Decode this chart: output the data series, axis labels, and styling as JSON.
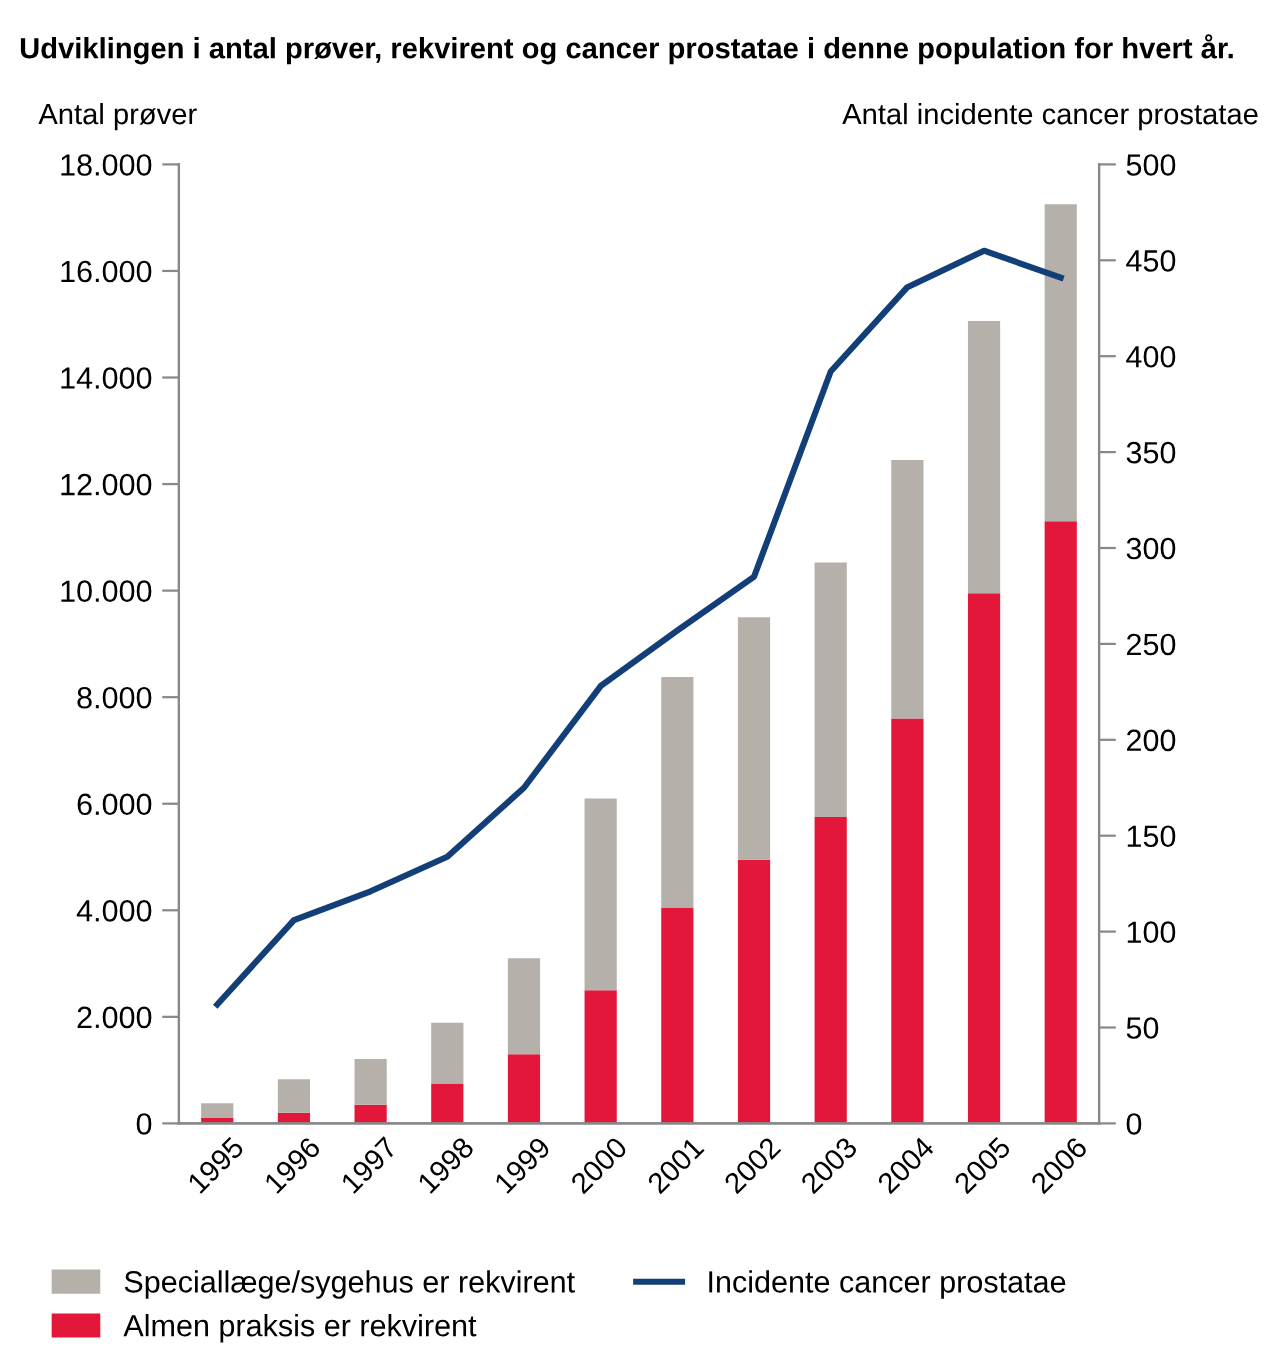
{
  "chart_data": {
    "type": "bar",
    "stacked": true,
    "title": "Udviklingen i antal prøver, rekvirent og cancer prostatae i denne population for hvert år.",
    "ylabel": "Antal prøver",
    "y2label": "Antal incidente cancer prostatae",
    "categories": [
      "1995",
      "1996",
      "1997",
      "1998",
      "1999",
      "2000",
      "2001",
      "2002",
      "2003",
      "2004",
      "2005",
      "2006"
    ],
    "series": [
      {
        "name": "Almen praksis er rekvirent",
        "color": "#e3173a",
        "values": [
          100,
          200,
          350,
          750,
          1300,
          2500,
          4050,
          4950,
          5750,
          7600,
          9950,
          11300
        ]
      },
      {
        "name": "Speciallæge/sygehus er rekvirent",
        "color": "#b6b0ab",
        "values": [
          280,
          630,
          860,
          1140,
          1800,
          3600,
          4330,
          4550,
          4780,
          4850,
          5110,
          5950
        ]
      },
      {
        "name": "Incidente cancer prostatae",
        "color": "#123f78",
        "type": "line",
        "axis": "y2",
        "values": [
          62,
          106,
          121,
          139,
          175,
          228,
          257,
          285,
          392,
          436,
          455,
          441
        ]
      }
    ],
    "ylim": [
      0,
      18000
    ],
    "yticks": [
      0,
      {
        "value": 2000,
        "label": "2.000"
      },
      {
        "value": 4000,
        "label": "4.000"
      },
      {
        "value": 6000,
        "label": "6.000"
      },
      {
        "value": 8000,
        "label": "8.000"
      },
      {
        "value": 10000,
        "label": "10.000"
      },
      {
        "value": 12000,
        "label": "12.000"
      },
      {
        "value": 14000,
        "label": "14.000"
      },
      {
        "value": 16000,
        "label": "16.000"
      },
      {
        "value": 18000,
        "label": "18.000"
      }
    ],
    "y2lim": [
      0,
      500
    ],
    "y2ticks": [
      0,
      50,
      100,
      150,
      200,
      250,
      300,
      350,
      400,
      450,
      500
    ],
    "grid": false,
    "legend": "bottom",
    "marker": "none",
    "line_style": "solid"
  }
}
